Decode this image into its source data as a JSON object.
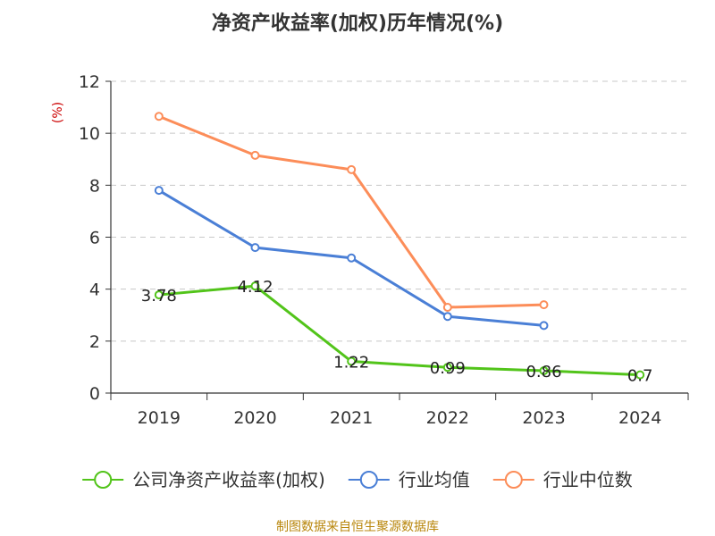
{
  "chart_data": {
    "type": "line",
    "title": "净资产收益率(加权)历年情况(%)",
    "ylabel": "(%)",
    "xlabel": "",
    "ylim": [
      0,
      12
    ],
    "yticks": [
      "0",
      "2",
      "4",
      "6",
      "8",
      "10",
      "12"
    ],
    "categories": [
      "2019",
      "2020",
      "2021",
      "2022",
      "2023",
      "2024"
    ],
    "grid": true,
    "legend_position": "bottom",
    "series": [
      {
        "name": "公司净资产收益率(加权)",
        "color": "#52c41a",
        "values": [
          3.78,
          4.12,
          1.22,
          0.99,
          0.86,
          0.7
        ],
        "labels": [
          "3.78",
          "4.12",
          "1.22",
          "0.99",
          "0.86",
          "0.7"
        ]
      },
      {
        "name": "行业均值",
        "color": "#4a7fd6",
        "values": [
          7.8,
          5.6,
          5.2,
          2.95,
          2.6,
          null
        ]
      },
      {
        "name": "行业中位数",
        "color": "#fc8d59",
        "values": [
          10.65,
          9.15,
          8.6,
          3.3,
          3.4,
          null
        ]
      }
    ]
  },
  "footer": {
    "source": "制图数据来自恒生聚源数据库"
  }
}
